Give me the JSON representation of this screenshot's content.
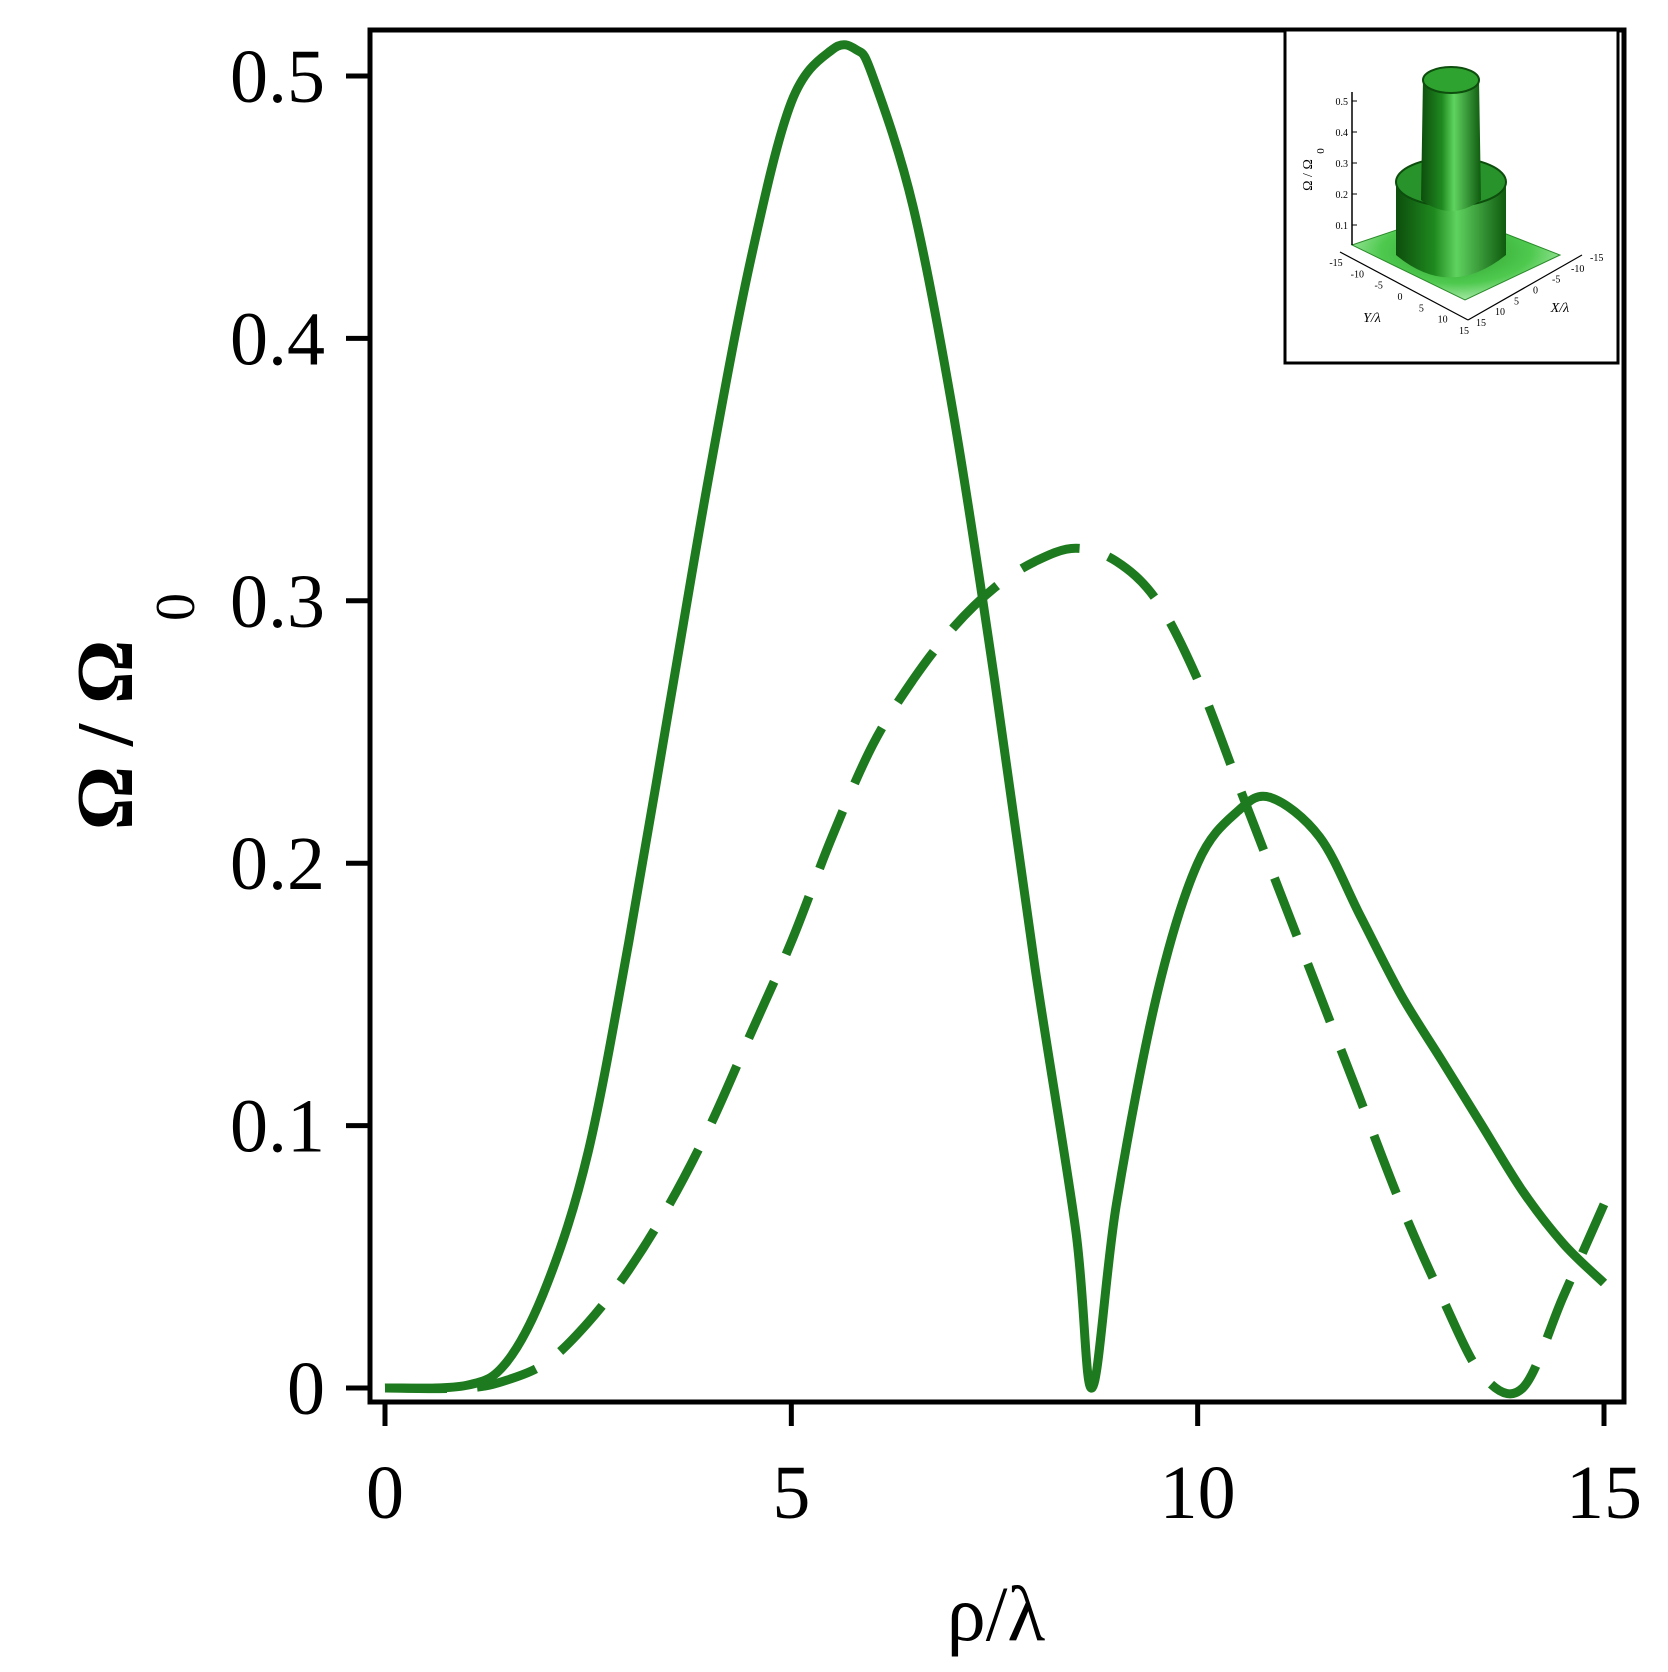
{
  "chart_data": {
    "type": "line",
    "xlabel": "ρ/λ",
    "ylabel_main": "Ω / Ω",
    "ylabel_sub": "0",
    "xlim": [
      0,
      15
    ],
    "ylim": [
      0,
      0.5
    ],
    "xticks": [
      "0",
      "5",
      "10",
      "15"
    ],
    "xtick_values": [
      0,
      5,
      10,
      15
    ],
    "yticks": [
      "0",
      "0.1",
      "0.2",
      "0.3",
      "0.4",
      "0.5"
    ],
    "ytick_values": [
      0,
      0.1,
      0.2,
      0.3,
      0.4,
      0.5
    ],
    "color": "#1e7a1e",
    "series": [
      {
        "style": "solid",
        "x": [
          0,
          1,
          1.5,
          2,
          2.5,
          3,
          3.5,
          4,
          4.5,
          5,
          5.5,
          5.8,
          6,
          6.5,
          7,
          7.5,
          8,
          8.5,
          8.7,
          9,
          9.5,
          10,
          10.5,
          10.9,
          11.5,
          12,
          12.5,
          13,
          13.5,
          14,
          14.5,
          15
        ],
        "y": [
          0,
          0.001,
          0.01,
          0.04,
          0.09,
          0.17,
          0.26,
          0.35,
          0.43,
          0.49,
          0.51,
          0.51,
          0.5,
          0.45,
          0.37,
          0.27,
          0.16,
          0.06,
          0.0,
          0.07,
          0.15,
          0.2,
          0.22,
          0.225,
          0.21,
          0.18,
          0.15,
          0.125,
          0.1,
          0.075,
          0.055,
          0.04
        ]
      },
      {
        "style": "dashed",
        "x": [
          0,
          1,
          1.5,
          2,
          2.5,
          3,
          3.5,
          4,
          4.5,
          5,
          5.5,
          6,
          6.5,
          7,
          7.5,
          8,
          8.5,
          9,
          9.5,
          10,
          10.5,
          11,
          11.5,
          12,
          12.5,
          13,
          13.5,
          14,
          14.5,
          15
        ],
        "y": [
          0,
          0.0,
          0.003,
          0.01,
          0.025,
          0.045,
          0.07,
          0.1,
          0.135,
          0.17,
          0.21,
          0.245,
          0.27,
          0.29,
          0.305,
          0.315,
          0.32,
          0.315,
          0.3,
          0.27,
          0.23,
          0.19,
          0.15,
          0.11,
          0.07,
          0.035,
          0.005,
          0.0,
          0.035,
          0.07
        ]
      }
    ],
    "inset": {
      "type": "3d-surface",
      "zlabel_main": "Ω / Ω",
      "zlabel_sub": "0",
      "xlabel": "X/λ",
      "ylabel": "Y/λ",
      "zticks": [
        "0.1",
        "0.2",
        "0.3",
        "0.4",
        "0.5"
      ],
      "xticks": [
        "-15",
        "-10",
        "-5",
        "0",
        "5",
        "10",
        "15"
      ],
      "yticks": [
        "-15",
        "-10",
        "-5",
        "0",
        "5",
        "10",
        "15"
      ]
    }
  }
}
